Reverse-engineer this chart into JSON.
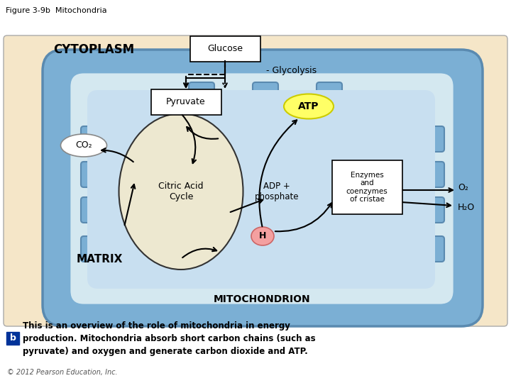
{
  "title": "Figure 3-9b  Mitochondria",
  "bg_color": "#F5E6C8",
  "mito_outer_color": "#7BAFD4",
  "mito_inner_color": "#B8D4E8",
  "matrix_color": "#D4E8F0",
  "cytoplasm_label": "CYTOPLASM",
  "matrix_label": "MATRIX",
  "mitochondrion_label": "MITOCHONDRION",
  "glucose_label": "Glucose",
  "pyruvate_label": "Pyruvate",
  "glycolysis_label": "Glycolysis",
  "atp_label": "ATP",
  "co2_label": "CO₂",
  "h_label": "H",
  "citric_label1": "Citric Acid",
  "citric_label2": "Cycle",
  "adp_label": "ADP +\nphosphate",
  "enzymes_label": "Enzymes\nand\ncoenzymes\nof cristae",
  "o2_label": "O₂",
  "h2o_label": "H₂O",
  "caption_b": "b",
  "caption_text": "This is an overview of the role of mitochondria in energy\nproduction. Mitochondria absorb short carbon chains (such as\npyruvate) and oxygen and generate carbon dioxide and ATP.",
  "copyright": "© 2012 Pearson Education, Inc.",
  "box_facecolor": "#FFFFFF",
  "atp_facecolor": "#FFFF66",
  "co2_facecolor": "#FFFFFF",
  "h_facecolor": "#F4A0A0",
  "b_box_color": "#003399"
}
